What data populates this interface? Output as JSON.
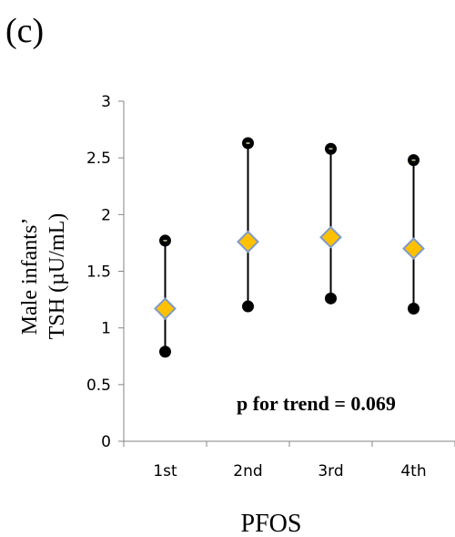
{
  "panel_label": "(c)",
  "annotation": "p for trend = 0.069",
  "chart_data": {
    "type": "scatter",
    "title": "",
    "xlabel": "PFOS",
    "ylabel_line1": "Male infants’",
    "ylabel_line2": "TSH (µU/mL)",
    "categories": [
      "1st",
      "2nd",
      "3rd",
      "4th"
    ],
    "ylim": [
      0,
      3
    ],
    "yticks": [
      0,
      0.5,
      1,
      1.5,
      2,
      2.5,
      3
    ],
    "ytick_labels": [
      "0",
      "0.5",
      "1",
      "1.5",
      "2",
      "2.5",
      "3"
    ],
    "grid": false,
    "series": [
      {
        "values": [
          1.17,
          1.76,
          1.8,
          1.7
        ],
        "marker": "diamond",
        "color": "#FFC000",
        "edge_color": "#7F9BC7"
      },
      {
        "values": [
          1.77,
          2.63,
          2.58,
          2.48
        ],
        "marker": "circle",
        "color": "#000000"
      },
      {
        "values": [
          0.79,
          1.19,
          1.26,
          1.17
        ],
        "marker": "circle",
        "color": "#000000"
      }
    ],
    "error_bar_color": "#000000"
  }
}
